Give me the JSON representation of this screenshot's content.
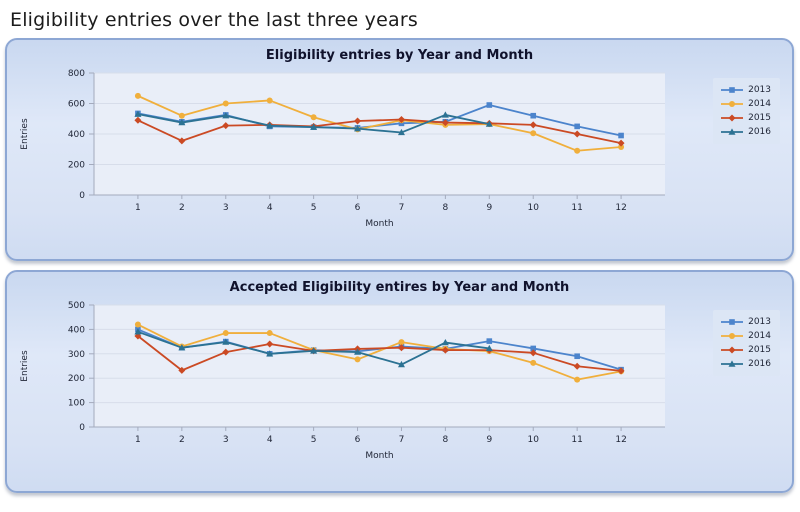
{
  "page": {
    "title": "Eligibility entries over the last three years"
  },
  "chart_data": [
    {
      "type": "line",
      "title": "Eligibility entries by Year and Month",
      "xlabel": "Month",
      "ylabel": "Entries",
      "categories": [
        1,
        2,
        3,
        4,
        5,
        6,
        7,
        8,
        9,
        10,
        11,
        12
      ],
      "ylim": [
        0,
        800
      ],
      "ytick_step": 200,
      "grid": true,
      "legend_position": "top-right",
      "series": [
        {
          "name": "2013",
          "color": "#4C84CC",
          "marker": "square",
          "values": [
            535,
            480,
            525,
            450,
            445,
            440,
            470,
            480,
            590,
            520,
            450,
            390
          ]
        },
        {
          "name": "2014",
          "color": "#F0AF3C",
          "marker": "circle",
          "values": [
            650,
            520,
            600,
            620,
            510,
            430,
            490,
            460,
            465,
            405,
            290,
            315
          ]
        },
        {
          "name": "2015",
          "color": "#CB4A24",
          "marker": "diamond",
          "values": [
            490,
            355,
            455,
            460,
            450,
            485,
            495,
            475,
            470,
            460,
            400,
            340
          ]
        },
        {
          "name": "2016",
          "color": "#2C7293",
          "marker": "triangle",
          "values": [
            530,
            475,
            520,
            455,
            445,
            435,
            410,
            525,
            465,
            null,
            null,
            null
          ]
        }
      ]
    },
    {
      "type": "line",
      "title": "Accepted Eligibility entires by Year and Month",
      "xlabel": "Month",
      "ylabel": "Entries",
      "categories": [
        1,
        2,
        3,
        4,
        5,
        6,
        7,
        8,
        9,
        10,
        11,
        12
      ],
      "ylim": [
        0,
        500
      ],
      "ytick_step": 100,
      "grid": true,
      "legend_position": "top-right",
      "series": [
        {
          "name": "2013",
          "color": "#4C84CC",
          "marker": "square",
          "values": [
            400,
            325,
            350,
            300,
            315,
            310,
            330,
            320,
            352,
            322,
            290,
            235
          ]
        },
        {
          "name": "2014",
          "color": "#F0AF3C",
          "marker": "circle",
          "values": [
            420,
            330,
            385,
            385,
            315,
            277,
            348,
            320,
            311,
            263,
            194,
            228
          ]
        },
        {
          "name": "2015",
          "color": "#CB4A24",
          "marker": "diamond",
          "values": [
            373,
            232,
            307,
            340,
            312,
            320,
            325,
            315,
            315,
            304,
            249,
            230
          ]
        },
        {
          "name": "2016",
          "color": "#2C7293",
          "marker": "triangle",
          "values": [
            390,
            325,
            348,
            300,
            312,
            307,
            256,
            346,
            322,
            null,
            null,
            null
          ]
        }
      ]
    }
  ],
  "style_colors": {
    "panel_border": "#8da7d4",
    "plot_background": "#e9eef8",
    "gridline": "#d7ddea",
    "axis": "#a4abbd",
    "legend_background": "#dce6f5"
  }
}
